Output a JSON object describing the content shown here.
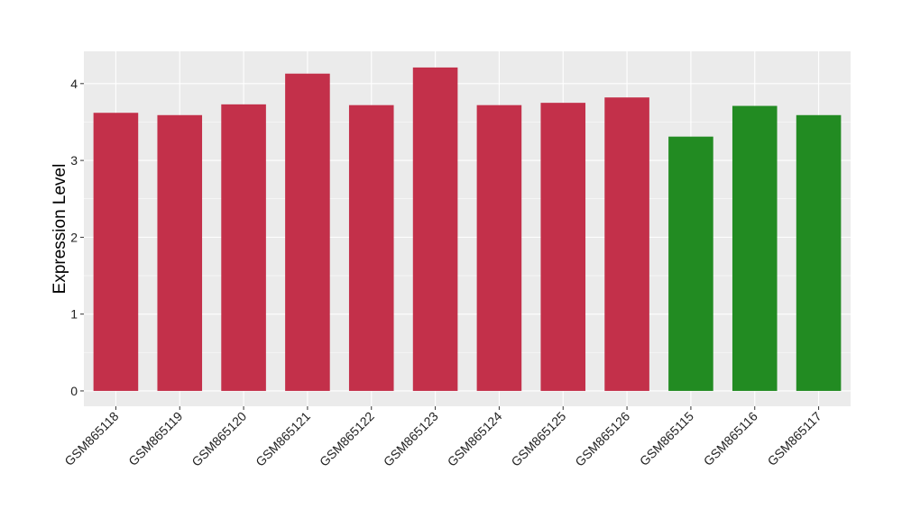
{
  "chart_data": {
    "type": "bar",
    "title": "",
    "xlabel": "",
    "ylabel": "Expression Level",
    "ylim": [
      -0.2,
      4.42
    ],
    "yticks": [
      0,
      1,
      2,
      3,
      4
    ],
    "grid": true,
    "legend": "none",
    "categories": [
      "GSM865118",
      "GSM865119",
      "GSM865120",
      "GSM865121",
      "GSM865122",
      "GSM865123",
      "GSM865124",
      "GSM865125",
      "GSM865126",
      "GSM865115",
      "GSM865116",
      "GSM865117"
    ],
    "values": [
      3.62,
      3.59,
      3.73,
      4.13,
      3.72,
      4.21,
      3.72,
      3.75,
      3.82,
      3.31,
      3.71,
      3.59
    ],
    "groups": [
      "red",
      "red",
      "red",
      "red",
      "red",
      "red",
      "red",
      "red",
      "red",
      "green",
      "green",
      "green"
    ],
    "colors": {
      "red": "#C3304A",
      "green": "#228B22"
    }
  }
}
